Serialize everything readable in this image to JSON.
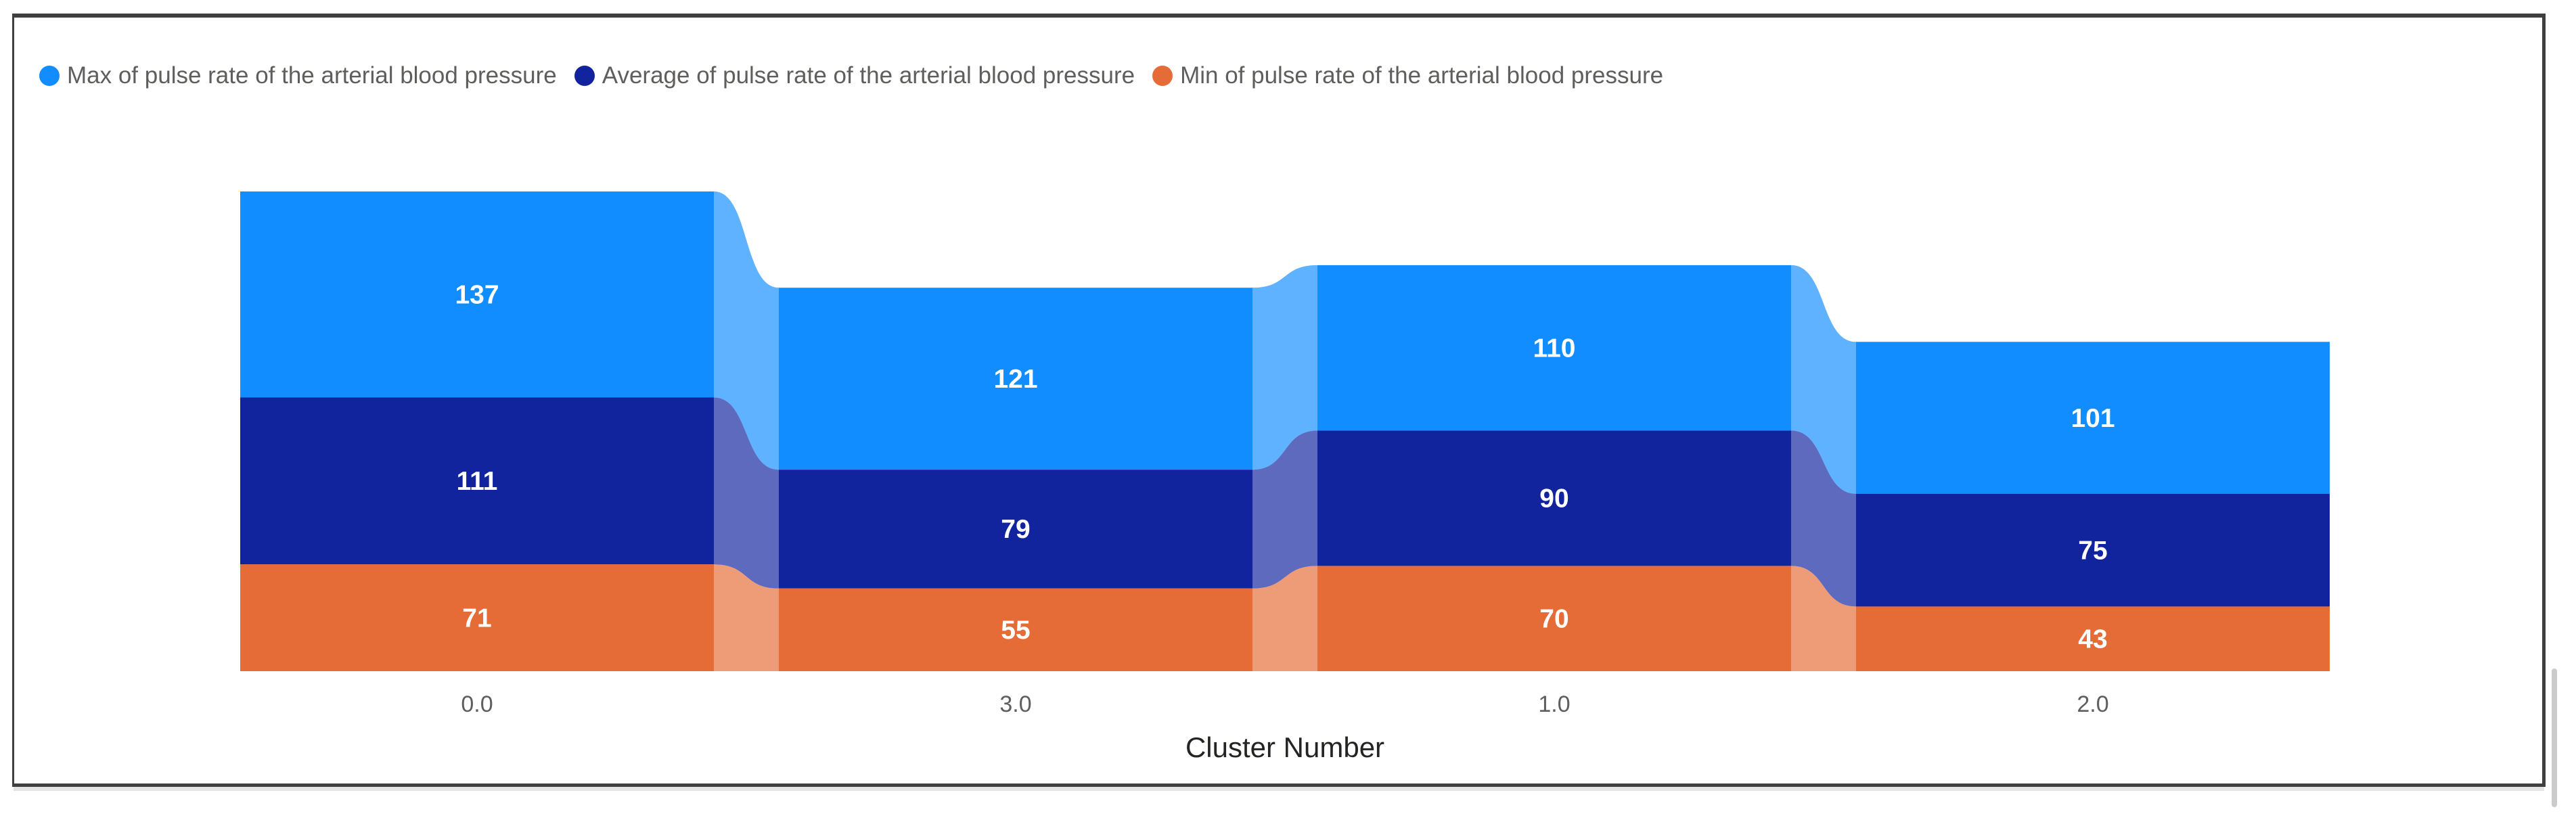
{
  "chart_data": {
    "type": "ribbon",
    "title": "",
    "xlabel": "Cluster Number",
    "ylabel": "",
    "categories": [
      "0.0",
      "3.0",
      "1.0",
      "2.0"
    ],
    "series": [
      {
        "name": "Max of pulse rate of the arterial blood pressure",
        "color": "#118DFF",
        "values": [
          137,
          121,
          110,
          101
        ]
      },
      {
        "name": "Average of pulse rate of the arterial blood pressure",
        "color": "#12239E",
        "values": [
          111,
          79,
          90,
          75
        ]
      },
      {
        "name": "Min of pulse rate of the arterial blood pressure",
        "color": "#E66C37",
        "values": [
          71,
          55,
          70,
          43
        ]
      }
    ],
    "stack_order_bottom_to_top": [
      "Min",
      "Average",
      "Max"
    ],
    "totals_by_category": [
      319,
      255,
      270,
      219
    ],
    "legend_position": "top-left",
    "y_axis_visible": false,
    "grid": false,
    "data_labels_visible": true,
    "ribbon_opacity": 0.68
  },
  "colors": {
    "legend_text": "#605E5C",
    "axis_tick_text": "#605E5C",
    "axis_title_text": "#252423",
    "value_label_text": "#FFFFFF",
    "frame_border": "#3f3f3f",
    "background": "#FFFFFF"
  }
}
